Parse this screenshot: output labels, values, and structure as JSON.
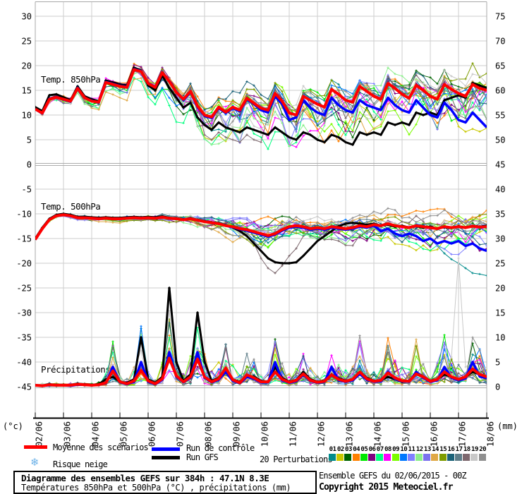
{
  "ui": {
    "axis_units": {
      "left": "(°c)",
      "right": "(mm)"
    },
    "legend": {
      "perturbations_label": "20 Perturbations",
      "snow_label": "Risque neige",
      "snow_icon": "❄"
    },
    "footer": {
      "subtitle": "Températures 850hPa et 500hPa (°C) , précipitations (mm)",
      "run_info": "Ensemble GEFS du 02/06/2015 - 00Z",
      "copyright": "Copyright 2015 Meteociel.fr"
    }
  },
  "chart_data": {
    "type": "line",
    "title": "Diagramme des ensembles GEFS sur 384h : 47.1N 8.3E",
    "x_dates": [
      "02/06",
      "03/06",
      "04/06",
      "05/06",
      "06/06",
      "07/06",
      "08/06",
      "09/06",
      "10/06",
      "11/06",
      "12/06",
      "13/06",
      "14/06",
      "15/06",
      "16/06",
      "17/06",
      "18/06"
    ],
    "points_per_day": 4,
    "hours_step": 6,
    "left_axis_ticks": [
      "30",
      "25",
      "20",
      "15",
      "10",
      "5",
      "0",
      "-5",
      "-10",
      "-15",
      "-20",
      "-25",
      "-30",
      "-35",
      "-40",
      "-45"
    ],
    "right_axis_ticks": [
      "75",
      "70",
      "65",
      "60",
      "55",
      "50",
      "45",
      "40",
      "35",
      "30",
      "25",
      "20",
      "15",
      "10",
      "5",
      "0"
    ],
    "ylim_left_celsius": [
      -45,
      30
    ],
    "ylim_right_mm": [
      0,
      75
    ],
    "grid": true,
    "series_styles": {
      "mean": {
        "label": "Moyenne des scénarios",
        "color": "#ff0000"
      },
      "control": {
        "label": "Run de contrôle",
        "color": "#0000ff"
      },
      "gfs": {
        "label": "Run GFS",
        "color": "#000000"
      }
    },
    "members": {
      "count": 20,
      "labels": [
        "01",
        "02",
        "03",
        "04",
        "05",
        "06",
        "07",
        "08",
        "09",
        "10",
        "11",
        "12",
        "13",
        "14",
        "15",
        "16",
        "17",
        "18",
        "19",
        "20"
      ],
      "colors": [
        "#008b8b",
        "#c8c800",
        "#006400",
        "#ff8000",
        "#00e800",
        "#800080",
        "#00ff7f",
        "#ff00ff",
        "#7cfc00",
        "#0078ff",
        "#8080ff",
        "#8cee8c",
        "#7b72ee",
        "#e0a846",
        "#7e9b00",
        "#1b6278",
        "#5e7d88",
        "#7d686e",
        "#c8c8c8",
        "#8f8f8f"
      ]
    },
    "panels": [
      {
        "id": "t850",
        "label": "Temp. 850hPa",
        "unit": "°C",
        "mean": [
          11.2,
          10.4,
          13.2,
          13.6,
          13.2,
          12.8,
          15.4,
          13.5,
          12.8,
          12.6,
          16.6,
          16.2,
          15.8,
          15.6,
          19.2,
          18.8,
          16.4,
          15.6,
          18.6,
          16.8,
          14.6,
          13.2,
          14.8,
          11.8,
          10.0,
          9.6,
          11.6,
          10.6,
          11.6,
          11.0,
          13.4,
          12.4,
          11.4,
          11.0,
          14.4,
          12.8,
          10.4,
          10.0,
          13.8,
          13.0,
          12.2,
          11.6,
          15.2,
          14.2,
          13.0,
          12.6,
          15.8,
          14.8,
          13.8,
          13.2,
          16.4,
          15.4,
          14.2,
          13.4,
          16.0,
          15.0,
          13.8,
          13.2,
          16.2,
          15.2,
          14.4,
          13.8,
          16.2,
          15.4,
          15.0
        ],
        "control": [
          11.2,
          10.3,
          13.3,
          13.7,
          13.1,
          12.7,
          15.5,
          13.4,
          12.9,
          12.5,
          16.7,
          16.3,
          15.9,
          15.7,
          19.3,
          18.9,
          16.5,
          15.7,
          18.7,
          16.9,
          14.7,
          13.0,
          14.6,
          11.6,
          9.8,
          9.4,
          11.4,
          10.4,
          11.4,
          10.8,
          13.2,
          12.2,
          11.0,
          10.5,
          13.8,
          12.2,
          9.0,
          9.5,
          13.0,
          11.5,
          10.5,
          10.0,
          13.5,
          12.0,
          11.0,
          10.5,
          13.0,
          12.0,
          11.5,
          11.0,
          13.5,
          12.0,
          11.0,
          10.5,
          13.0,
          11.5,
          10.0,
          9.5,
          12.5,
          11.0,
          9.0,
          8.5,
          10.5,
          9.0,
          7.5
        ],
        "gfs": [
          11.6,
          10.8,
          14.0,
          14.2,
          13.6,
          13.0,
          15.8,
          13.8,
          13.2,
          12.8,
          17.0,
          16.6,
          16.2,
          16.0,
          19.6,
          19.0,
          16.0,
          15.0,
          18.0,
          15.5,
          13.5,
          11.5,
          12.5,
          9.5,
          8.0,
          7.0,
          8.5,
          7.5,
          7.0,
          6.5,
          7.5,
          7.0,
          6.5,
          6.0,
          7.5,
          6.5,
          5.5,
          5.0,
          6.5,
          6.0,
          5.0,
          4.5,
          6.0,
          5.5,
          4.5,
          4.0,
          6.5,
          6.0,
          6.5,
          6.0,
          8.5,
          8.0,
          8.5,
          8.0,
          10.5,
          10.0,
          10.5,
          10.0,
          13.0,
          13.5,
          14.0,
          13.5,
          16.5,
          16.0,
          15.5
        ],
        "member_spread": [
          0.6,
          0.6,
          0.7,
          0.7,
          0.8,
          0.8,
          0.9,
          0.9,
          1.0,
          1.0,
          1.0,
          1.0,
          1.0,
          1.0,
          1.1,
          1.2,
          1.5,
          1.7,
          1.9,
          2.1,
          2.4,
          2.7,
          3.0,
          3.2,
          3.4,
          3.5,
          3.5,
          3.5,
          3.5,
          3.5,
          3.5,
          3.6,
          3.6,
          3.6,
          3.7,
          3.7,
          3.8,
          3.8,
          3.8,
          3.8,
          3.9,
          3.9,
          3.9,
          3.9,
          4.0,
          4.0,
          4.0,
          4.0,
          4.0,
          4.0,
          4.0,
          4.0,
          4.1,
          4.1,
          4.1,
          4.1,
          4.2,
          4.2,
          4.2,
          4.2,
          4.4,
          4.4,
          4.4,
          4.4,
          4.5
        ]
      },
      {
        "id": "t500",
        "label": "Temp. 500hPa",
        "unit": "°C",
        "mean": [
          -15.2,
          -13.0,
          -11.2,
          -10.4,
          -10.2,
          -10.4,
          -10.8,
          -10.8,
          -10.9,
          -11.0,
          -10.9,
          -11.0,
          -11.0,
          -10.9,
          -10.8,
          -10.9,
          -10.8,
          -10.9,
          -10.7,
          -10.9,
          -11.0,
          -11.2,
          -11.0,
          -11.3,
          -11.6,
          -11.8,
          -12.0,
          -12.4,
          -12.6,
          -13.0,
          -13.2,
          -13.6,
          -14.0,
          -14.4,
          -14.0,
          -13.2,
          -12.6,
          -12.4,
          -12.6,
          -13.0,
          -12.8,
          -13.0,
          -12.6,
          -12.8,
          -13.0,
          -12.8,
          -12.4,
          -12.6,
          -12.2,
          -12.4,
          -12.0,
          -12.4,
          -12.6,
          -12.8,
          -12.4,
          -12.6,
          -12.8,
          -13.0,
          -12.6,
          -12.8,
          -12.6,
          -12.8,
          -12.5,
          -12.7,
          -12.6
        ],
        "control": [
          -15.2,
          -13.0,
          -11.2,
          -10.4,
          -10.2,
          -10.4,
          -10.8,
          -10.8,
          -10.9,
          -11.0,
          -10.9,
          -11.0,
          -11.0,
          -10.9,
          -10.8,
          -10.9,
          -10.8,
          -10.9,
          -10.7,
          -10.9,
          -11.0,
          -11.2,
          -11.0,
          -11.3,
          -11.6,
          -11.8,
          -12.0,
          -12.4,
          -12.7,
          -13.1,
          -13.4,
          -13.8,
          -14.2,
          -14.6,
          -14.2,
          -13.4,
          -12.8,
          -12.6,
          -12.8,
          -13.2,
          -13.0,
          -13.2,
          -12.8,
          -13.0,
          -13.2,
          -13.0,
          -12.6,
          -12.8,
          -12.4,
          -13.5,
          -13.0,
          -14.0,
          -14.5,
          -14.0,
          -14.5,
          -15.5,
          -15.0,
          -16.0,
          -15.5,
          -16.0,
          -15.5,
          -16.5,
          -16.0,
          -17.0,
          -17.5
        ],
        "gfs": [
          -15.0,
          -12.8,
          -11.0,
          -10.2,
          -10.0,
          -10.2,
          -10.6,
          -10.6,
          -10.7,
          -10.8,
          -10.7,
          -10.8,
          -10.8,
          -10.7,
          -10.6,
          -10.7,
          -10.6,
          -10.7,
          -10.5,
          -10.8,
          -10.9,
          -11.1,
          -10.9,
          -11.2,
          -11.5,
          -11.7,
          -11.9,
          -12.3,
          -12.8,
          -13.5,
          -14.5,
          -16.0,
          -17.5,
          -19.0,
          -19.8,
          -20.0,
          -20.0,
          -19.8,
          -18.5,
          -17.0,
          -15.5,
          -14.5,
          -13.5,
          -12.5,
          -12.0,
          -11.8,
          -12.0,
          -12.2,
          -12.0,
          -12.4,
          -12.2,
          -12.6,
          -12.4,
          -12.8,
          -12.5,
          -12.8,
          -12.6,
          -13.0,
          -12.7,
          -12.9,
          -12.5,
          -12.8,
          -12.4,
          -12.6,
          -12.4
        ],
        "member_spread": [
          0.2,
          0.2,
          0.3,
          0.3,
          0.3,
          0.3,
          0.3,
          0.3,
          0.4,
          0.4,
          0.4,
          0.4,
          0.4,
          0.4,
          0.4,
          0.5,
          0.5,
          0.5,
          0.6,
          0.6,
          0.7,
          0.7,
          0.8,
          0.9,
          1.0,
          1.1,
          1.2,
          1.4,
          1.6,
          1.8,
          2.0,
          2.3,
          2.6,
          2.7,
          2.7,
          2.6,
          2.4,
          2.3,
          2.2,
          2.1,
          2.0,
          2.0,
          2.0,
          2.0,
          2.0,
          2.0,
          2.0,
          2.0,
          2.1,
          2.1,
          2.2,
          2.2,
          2.3,
          2.3,
          2.4,
          2.4,
          2.6,
          2.6,
          2.7,
          2.7,
          2.9,
          3.0,
          3.1,
          3.2,
          3.3
        ]
      },
      {
        "id": "precip",
        "label": "Précipitations",
        "unit": "mm",
        "mean": [
          0.3,
          0.2,
          0.4,
          0.3,
          0.3,
          0.3,
          0.5,
          0.4,
          0.3,
          0.4,
          0.8,
          3.2,
          1.0,
          0.6,
          1.2,
          3.3,
          1.2,
          0.6,
          1.6,
          5.8,
          2.2,
          1.0,
          2.0,
          5.6,
          2.0,
          1.0,
          1.6,
          3.8,
          1.4,
          0.8,
          2.4,
          1.8,
          1.0,
          1.0,
          3.0,
          1.5,
          0.9,
          1.3,
          2.6,
          1.3,
          0.9,
          1.1,
          2.4,
          1.5,
          1.1,
          1.5,
          3.0,
          1.6,
          1.1,
          1.3,
          2.8,
          1.8,
          1.2,
          1.1,
          2.6,
          2.0,
          1.1,
          1.5,
          3.0,
          2.0,
          1.5,
          2.0,
          3.6,
          2.5,
          2.0
        ],
        "control": [
          0.3,
          0.2,
          0.3,
          0.3,
          0.3,
          0.2,
          0.4,
          0.4,
          0.3,
          0.4,
          0.7,
          4.0,
          0.9,
          0.5,
          1.0,
          5.0,
          1.0,
          0.5,
          1.4,
          7.0,
          2.0,
          0.9,
          1.8,
          7.0,
          1.8,
          0.9,
          1.4,
          3.0,
          1.2,
          0.7,
          2.0,
          1.6,
          0.9,
          0.9,
          5.0,
          1.3,
          0.8,
          1.1,
          2.4,
          1.2,
          0.8,
          1.0,
          4.0,
          1.3,
          1.0,
          1.3,
          2.6,
          1.4,
          1.0,
          1.1,
          3.0,
          1.6,
          1.1,
          1.0,
          3.0,
          1.8,
          1.0,
          1.3,
          4.0,
          1.8,
          1.3,
          1.7,
          5.0,
          2.1,
          1.7
        ],
        "gfs": [
          0.3,
          0.2,
          0.5,
          0.4,
          0.4,
          0.3,
          0.6,
          0.5,
          0.4,
          0.5,
          1.5,
          2.0,
          1.0,
          0.8,
          1.5,
          10.0,
          1.5,
          0.8,
          2.0,
          20.0,
          5.0,
          1.2,
          2.5,
          15.0,
          5.0,
          1.2,
          1.8,
          3.5,
          1.5,
          1.0,
          2.2,
          2.0,
          1.2,
          1.0,
          4.0,
          1.8,
          1.0,
          1.4,
          3.0,
          1.5,
          1.0,
          1.2,
          2.5,
          1.7,
          1.2,
          1.5,
          3.0,
          1.8,
          1.2,
          1.3,
          2.0,
          1.5,
          1.0,
          1.0,
          3.0,
          2.0,
          1.2,
          1.5,
          2.5,
          2.0,
          1.5,
          2.0,
          3.0,
          2.5,
          2.0
        ],
        "member_spread": [
          0.4,
          0.4,
          0.4,
          0.4,
          0.4,
          0.4,
          0.5,
          0.5,
          0.5,
          0.6,
          2.0,
          8.0,
          2.0,
          1.0,
          3.0,
          9.0,
          2.0,
          1.0,
          4.0,
          12.0,
          4.0,
          2.0,
          5.0,
          11.0,
          4.0,
          2.0,
          3.0,
          5.0,
          3.0,
          2.0,
          4.0,
          4.0,
          2.0,
          2.0,
          7.0,
          3.0,
          2.0,
          3.0,
          6.0,
          3.0,
          2.0,
          2.0,
          5.0,
          3.0,
          2.0,
          3.0,
          7.0,
          3.0,
          2.0,
          3.0,
          7.0,
          4.0,
          3.0,
          2.0,
          7.0,
          4.0,
          2.0,
          3.0,
          8.0,
          4.0,
          3.0,
          4.0,
          9.0,
          5.0,
          3.0
        ]
      }
    ],
    "member_overrides": [
      {
        "panel": 0,
        "member": 17,
        "points": {
          "24": 6,
          "25": 5,
          "26": 6.5,
          "27": 5.5,
          "28": 5,
          "29": 4.5,
          "30": 6,
          "31": 5,
          "32": 4.5
        }
      },
      {
        "panel": 1,
        "member": 0,
        "points": {
          "56": -15,
          "57": -16.5,
          "58": -18,
          "59": -19.2,
          "60": -20,
          "61": -21,
          "62": -22,
          "63": -22.2,
          "64": -22.5
        }
      },
      {
        "panel": 1,
        "member": 17,
        "points": {
          "31": -16,
          "32": -19,
          "33": -21,
          "34": -22,
          "35": -20.5,
          "36": -18.5,
          "37": -17
        }
      },
      {
        "panel": 2,
        "member": 18,
        "points": {
          "59": 6,
          "60": 26,
          "61": 4
        }
      }
    ]
  }
}
